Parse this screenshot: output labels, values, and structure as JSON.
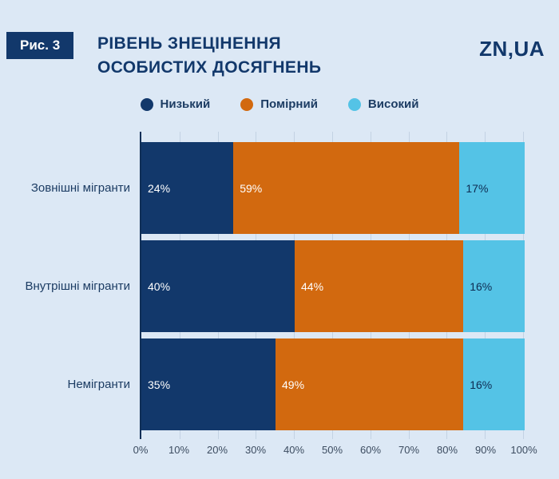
{
  "header": {
    "figure_label": "Рис. 3",
    "title_line1": "РІВЕНЬ ЗНЕЦІНЕННЯ",
    "title_line2": "ОСОБИСТИХ ДОСЯГНЕНЬ",
    "logo": "ZN,UA"
  },
  "colors": {
    "background": "#dce8f5",
    "navy": "#12386b",
    "orange": "#d2690f",
    "cyan": "#54c3e6",
    "axis_line": "#0f2f57",
    "gridline": "#c3d2e3"
  },
  "chart_data": {
    "type": "bar",
    "orientation": "horizontal-stacked",
    "title": "РІВЕНЬ ЗНЕЦІНЕННЯ ОСОБИСТИХ ДОСЯГНЕНЬ",
    "categories": [
      "Зовнішні мігранти",
      "Внутрішні мігранти",
      "Немігранти"
    ],
    "series": [
      {
        "name": "Низький",
        "color": "#12386b",
        "values": [
          24,
          40,
          35
        ]
      },
      {
        "name": "Помірний",
        "color": "#d2690f",
        "values": [
          59,
          44,
          49
        ]
      },
      {
        "name": "Високий",
        "color": "#54c3e6",
        "values": [
          17,
          16,
          16
        ]
      }
    ],
    "value_suffix": "%",
    "label_colors": [
      "#ffffff",
      "#ffffff",
      "#0e2c52"
    ],
    "x_ticks": [
      "0%",
      "10%",
      "20%",
      "30%",
      "40%",
      "50%",
      "60%",
      "70%",
      "80%",
      "90%",
      "100%"
    ],
    "xlim": [
      0,
      100
    ],
    "grid": true,
    "legend_position": "top-center"
  }
}
